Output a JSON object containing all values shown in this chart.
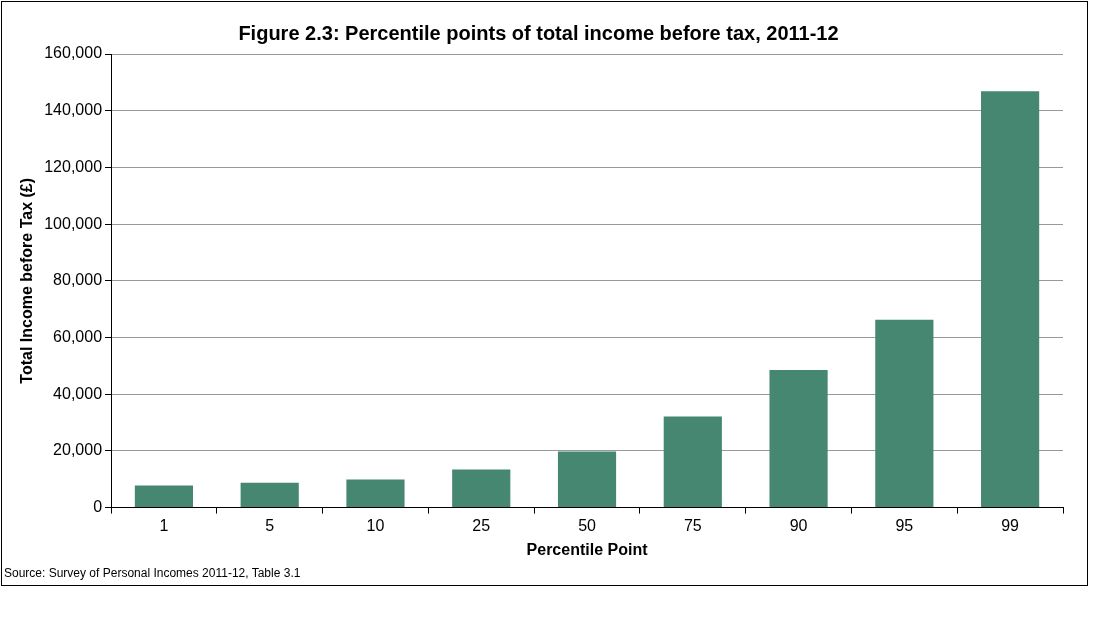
{
  "chart_data": {
    "type": "bar",
    "title": "Figure 2.3: Percentile points of total income before tax, 2011-12",
    "xlabel": "Percentile Point",
    "ylabel": "Total Income before Tax (£)",
    "categories": [
      "1",
      "5",
      "10",
      "25",
      "50",
      "75",
      "90",
      "95",
      "99"
    ],
    "values": [
      7800,
      8800,
      9900,
      13400,
      19800,
      32100,
      48500,
      66300,
      146900
    ],
    "color": "#458770",
    "ylim": [
      0,
      160000
    ],
    "yticks": [
      {
        "value": 0,
        "label": "0"
      },
      {
        "value": 20000,
        "label": "20,000"
      },
      {
        "value": 40000,
        "label": "40,000"
      },
      {
        "value": 60000,
        "label": "60,000"
      },
      {
        "value": 80000,
        "label": "80,000"
      },
      {
        "value": 100000,
        "label": "100,000"
      },
      {
        "value": 120000,
        "label": "120,000"
      },
      {
        "value": 140000,
        "label": "140,000"
      },
      {
        "value": 160000,
        "label": "160,000"
      }
    ],
    "grid": "y",
    "annotations": [
      "Source: Survey of Personal Incomes 2011-12, Table 3.1"
    ]
  }
}
